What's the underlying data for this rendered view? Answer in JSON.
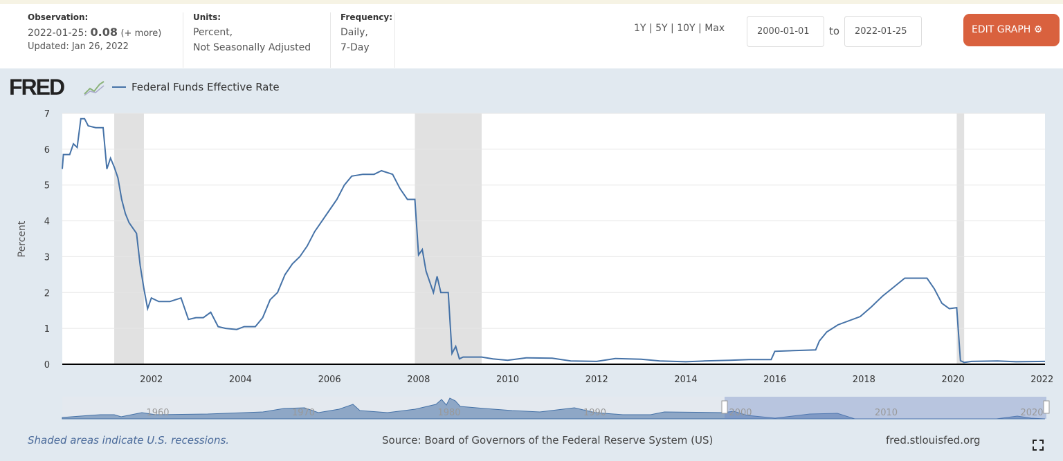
{
  "header": {
    "observation_label": "Observation:",
    "observation_date": "2022-01-25:",
    "observation_value": "0.08",
    "observation_more": "(+ more)",
    "updated": "Updated: Jan 26, 2022",
    "units_label": "Units:",
    "units_line1": "Percent,",
    "units_line2": "Not Seasonally Adjusted",
    "frequency_label": "Frequency:",
    "frequency_line1": "Daily,",
    "frequency_line2": "7-Day",
    "ranges": [
      "1Y",
      "5Y",
      "10Y",
      "Max"
    ],
    "start_date": "2000-01-01",
    "to_label": "to",
    "end_date": "2022-01-25",
    "edit_graph": "EDIT GRAPH",
    "edit_color": "#d9613e"
  },
  "logo": "FRED",
  "footer": {
    "recession_note": "Shaded areas indicate U.S. recessions.",
    "source": "Source: Board of Governors of the Federal Reserve System (US)",
    "site": "fred.stlouisfed.org"
  },
  "chart_data": {
    "type": "line",
    "title": "",
    "ylabel": "Percent",
    "xlim": [
      "2000-01-01",
      "2022-01-25"
    ],
    "ylim": [
      0,
      7
    ],
    "yticks": [
      0,
      1,
      2,
      3,
      4,
      5,
      6,
      7
    ],
    "xticks": [
      "2002",
      "2004",
      "2006",
      "2008",
      "2010",
      "2012",
      "2014",
      "2016",
      "2018",
      "2020",
      "2022"
    ],
    "grid": true,
    "legend": "top-left",
    "line_color": "#4572a7",
    "recessions": [
      [
        "2001-03",
        "2001-11"
      ],
      [
        "2007-12",
        "2009-06"
      ],
      [
        "2020-02",
        "2020-04"
      ]
    ],
    "navigator_labels": [
      "1960",
      "1970",
      "1980",
      "1990",
      "2000",
      "2010",
      "2020"
    ],
    "series": [
      {
        "name": "Federal Funds Effective Rate",
        "points": [
          [
            "2000-01",
            5.45
          ],
          [
            "2000-01-10",
            5.85
          ],
          [
            "2000-03",
            5.85
          ],
          [
            "2000-04",
            6.15
          ],
          [
            "2000-05",
            6.05
          ],
          [
            "2000-06",
            6.85
          ],
          [
            "2000-07",
            6.85
          ],
          [
            "2000-08",
            6.65
          ],
          [
            "2000-10",
            6.6
          ],
          [
            "2000-12",
            6.6
          ],
          [
            "2001-01",
            5.45
          ],
          [
            "2001-02",
            5.75
          ],
          [
            "2001-03",
            5.5
          ],
          [
            "2001-04",
            5.2
          ],
          [
            "2001-05",
            4.6
          ],
          [
            "2001-06",
            4.2
          ],
          [
            "2001-07",
            3.95
          ],
          [
            "2001-09",
            3.65
          ],
          [
            "2001-10",
            2.75
          ],
          [
            "2001-11",
            2.1
          ],
          [
            "2001-12",
            1.55
          ],
          [
            "2002-01",
            1.85
          ],
          [
            "2002-03",
            1.75
          ],
          [
            "2002-06",
            1.75
          ],
          [
            "2002-09",
            1.85
          ],
          [
            "2002-11",
            1.25
          ],
          [
            "2003-01",
            1.3
          ],
          [
            "2003-03",
            1.3
          ],
          [
            "2003-05",
            1.45
          ],
          [
            "2003-07",
            1.05
          ],
          [
            "2003-09",
            1.0
          ],
          [
            "2003-12",
            0.97
          ],
          [
            "2004-02",
            1.05
          ],
          [
            "2004-05",
            1.05
          ],
          [
            "2004-07",
            1.3
          ],
          [
            "2004-09",
            1.8
          ],
          [
            "2004-11",
            2.0
          ],
          [
            "2005-01",
            2.5
          ],
          [
            "2005-03",
            2.8
          ],
          [
            "2005-05",
            3.0
          ],
          [
            "2005-07",
            3.3
          ],
          [
            "2005-09",
            3.7
          ],
          [
            "2005-11",
            4.0
          ],
          [
            "2006-01",
            4.3
          ],
          [
            "2006-03",
            4.6
          ],
          [
            "2006-05",
            5.0
          ],
          [
            "2006-07",
            5.25
          ],
          [
            "2006-10",
            5.3
          ],
          [
            "2007-01",
            5.3
          ],
          [
            "2007-03",
            5.4
          ],
          [
            "2007-06",
            5.3
          ],
          [
            "2007-08",
            4.9
          ],
          [
            "2007-10",
            4.6
          ],
          [
            "2007-12",
            4.6
          ],
          [
            "2008-01",
            3.05
          ],
          [
            "2008-02",
            3.2
          ],
          [
            "2008-03",
            2.6
          ],
          [
            "2008-04",
            2.3
          ],
          [
            "2008-05",
            2.0
          ],
          [
            "2008-06",
            2.45
          ],
          [
            "2008-07",
            2.0
          ],
          [
            "2008-09",
            2.0
          ],
          [
            "2008-10",
            0.3
          ],
          [
            "2008-11",
            0.5
          ],
          [
            "2008-12",
            0.15
          ],
          [
            "2009-01",
            0.2
          ],
          [
            "2009-06",
            0.2
          ],
          [
            "2009-09",
            0.15
          ],
          [
            "2010-01",
            0.11
          ],
          [
            "2010-06",
            0.18
          ],
          [
            "2011-01",
            0.17
          ],
          [
            "2011-06",
            0.09
          ],
          [
            "2012-01",
            0.08
          ],
          [
            "2012-06",
            0.16
          ],
          [
            "2013-01",
            0.14
          ],
          [
            "2013-06",
            0.09
          ],
          [
            "2014-01",
            0.07
          ],
          [
            "2014-06",
            0.09
          ],
          [
            "2015-01",
            0.11
          ],
          [
            "2015-06",
            0.13
          ],
          [
            "2015-12",
            0.13
          ],
          [
            "2016-01",
            0.36
          ],
          [
            "2016-06",
            0.38
          ],
          [
            "2016-12",
            0.4
          ],
          [
            "2017-01",
            0.65
          ],
          [
            "2017-03",
            0.9
          ],
          [
            "2017-06",
            1.1
          ],
          [
            "2017-12",
            1.33
          ],
          [
            "2018-03",
            1.6
          ],
          [
            "2018-06",
            1.9
          ],
          [
            "2018-09",
            2.15
          ],
          [
            "2018-12",
            2.4
          ],
          [
            "2019-03",
            2.4
          ],
          [
            "2019-06",
            2.4
          ],
          [
            "2019-08",
            2.1
          ],
          [
            "2019-10",
            1.7
          ],
          [
            "2019-12",
            1.55
          ],
          [
            "2020-02",
            1.58
          ],
          [
            "2020-03",
            0.1
          ],
          [
            "2020-04",
            0.05
          ],
          [
            "2020-06",
            0.08
          ],
          [
            "2021-01",
            0.09
          ],
          [
            "2021-06",
            0.07
          ],
          [
            "2022-01-25",
            0.08
          ]
        ]
      }
    ]
  }
}
